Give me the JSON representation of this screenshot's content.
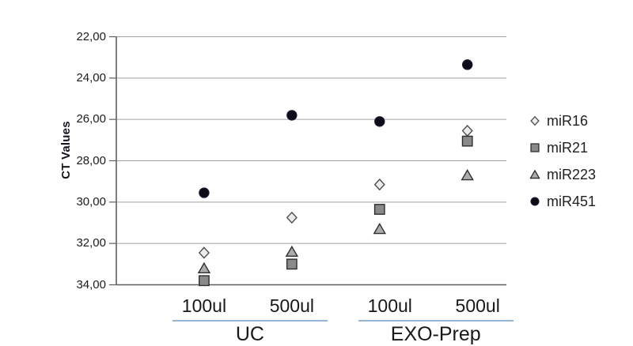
{
  "chart_data": {
    "type": "scatter",
    "ylabel": "CT Values",
    "y_axis": {
      "min": 22,
      "max": 34,
      "step": 2,
      "inverted": true,
      "tick_labels": [
        "22,00",
        "24,00",
        "26,00",
        "28,00",
        "30,00",
        "32,00",
        "34,00"
      ]
    },
    "x_groups": [
      {
        "label": "UC",
        "categories": [
          "100ul",
          "500ul"
        ]
      },
      {
        "label": "EXO-Prep",
        "categories": [
          "100ul",
          "500ul"
        ]
      }
    ],
    "categories": [
      "UC 100ul",
      "UC 500ul",
      "EXO-Prep 100ul",
      "EXO-Prep 500ul"
    ],
    "grid": "horizontal",
    "legend_position": "right",
    "series": [
      {
        "name": "miR16",
        "marker": "diamond",
        "fill": "#ececec",
        "stroke": "#4d4d4d",
        "values": [
          32.45,
          30.75,
          29.15,
          26.55
        ]
      },
      {
        "name": "miR21",
        "marker": "square",
        "fill": "#8a8a8a",
        "stroke": "#2e2e2e",
        "values": [
          33.8,
          33.0,
          30.35,
          27.05
        ]
      },
      {
        "name": "miR223",
        "marker": "triangle",
        "fill": "#ababab",
        "stroke": "#2e2e2e",
        "values": [
          33.2,
          32.4,
          31.3,
          28.7
        ]
      },
      {
        "name": "miR451",
        "marker": "circle",
        "fill": "#0d0d15",
        "stroke": "#221338",
        "values": [
          29.55,
          25.8,
          26.1,
          23.35
        ]
      }
    ]
  },
  "styles": {
    "gridline_color": "#a3a3a3",
    "axis_color": "#5f5f5f",
    "tick_label_color": "#1c1c1c",
    "category_underline_color": "#95b3d7",
    "text_color": "#1a1a1a"
  }
}
